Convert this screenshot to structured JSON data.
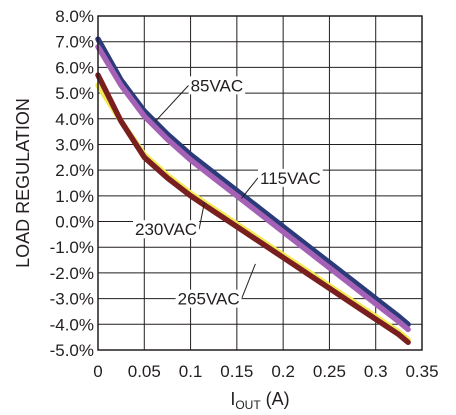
{
  "chart_data": {
    "type": "line",
    "title": "",
    "xlabel": {
      "main": "I",
      "sub": "OUT",
      "unit": " (A)"
    },
    "ylabel": "LOAD REGULATION",
    "xlim": [
      0,
      0.35
    ],
    "ylim": [
      -5.0,
      8.0
    ],
    "grid": true,
    "x_ticks": [
      0,
      0.05,
      0.1,
      0.15,
      0.2,
      0.25,
      0.3,
      0.35
    ],
    "x_tick_labels": [
      "0",
      "0.05",
      "0.1",
      "0.15",
      "0.2",
      "0.25",
      "0.3",
      "0.35"
    ],
    "y_ticks": [
      8,
      7,
      6,
      5,
      4,
      3,
      2,
      1,
      0,
      -1,
      -2,
      -3,
      -4,
      -5
    ],
    "y_tick_labels": [
      "8.0%",
      "7.0%",
      "6.0%",
      "5.0%",
      "4.0%",
      "3.0%",
      "2.0%",
      "1.0%",
      "0.0%",
      "-1.0%",
      "-2.0%",
      "-3.0%",
      "-4.0%",
      "-5.0%"
    ],
    "series": [
      {
        "name": "85VAC",
        "color": "#2b3a78",
        "x": [
          0,
          0.025,
          0.05,
          0.075,
          0.1,
          0.125,
          0.15,
          0.175,
          0.2,
          0.225,
          0.25,
          0.275,
          0.3,
          0.325,
          0.335
        ],
        "y": [
          7.1,
          5.5,
          4.3,
          3.4,
          2.6,
          1.9,
          1.2,
          0.5,
          -0.2,
          -0.9,
          -1.6,
          -2.3,
          -3.0,
          -3.7,
          -4.0
        ]
      },
      {
        "name": "115VAC",
        "color": "#a461b5",
        "x": [
          0,
          0.025,
          0.05,
          0.075,
          0.1,
          0.125,
          0.15,
          0.175,
          0.2,
          0.225,
          0.25,
          0.275,
          0.3,
          0.325,
          0.335
        ],
        "y": [
          6.8,
          5.3,
          4.1,
          3.2,
          2.4,
          1.7,
          1.0,
          0.3,
          -0.4,
          -1.1,
          -1.8,
          -2.5,
          -3.2,
          -3.9,
          -4.2
        ]
      },
      {
        "name": "230VAC",
        "color": "#f2ea52",
        "x": [
          0,
          0.025,
          0.05,
          0.075,
          0.1,
          0.125,
          0.15,
          0.175,
          0.2,
          0.225,
          0.25,
          0.275,
          0.3,
          0.325,
          0.335
        ],
        "y": [
          5.3,
          3.9,
          2.6,
          1.8,
          1.1,
          0.5,
          -0.1,
          -0.7,
          -1.3,
          -1.9,
          -2.5,
          -3.1,
          -3.7,
          -4.3,
          -4.6
        ]
      },
      {
        "name": "265VAC",
        "color": "#7a1f1f",
        "x": [
          0,
          0.025,
          0.05,
          0.075,
          0.1,
          0.125,
          0.15,
          0.175,
          0.2,
          0.225,
          0.25,
          0.275,
          0.3,
          0.325,
          0.335
        ],
        "y": [
          5.7,
          3.9,
          2.5,
          1.7,
          1.0,
          0.4,
          -0.2,
          -0.8,
          -1.4,
          -2.0,
          -2.6,
          -3.2,
          -3.8,
          -4.4,
          -4.7
        ]
      }
    ],
    "annotations": [
      {
        "text": "85VAC",
        "series": "85VAC",
        "x": 0.1,
        "y": 5.3,
        "pointer_x": 0.062,
        "pointer_y": 3.9
      },
      {
        "text": "115VAC",
        "series": "115VAC",
        "x": 0.175,
        "y": 1.7,
        "pointer_x": 0.155,
        "pointer_y": 0.9
      },
      {
        "text": "230VAC",
        "series": "230VAC",
        "x": 0.04,
        "y": -0.3,
        "pointer_x": 0.115,
        "pointer_y": 0.75
      },
      {
        "text": "265VAC",
        "series": "265VAC",
        "x": 0.086,
        "y": -3.0,
        "pointer_x": 0.17,
        "pointer_y": -1.65
      }
    ]
  }
}
